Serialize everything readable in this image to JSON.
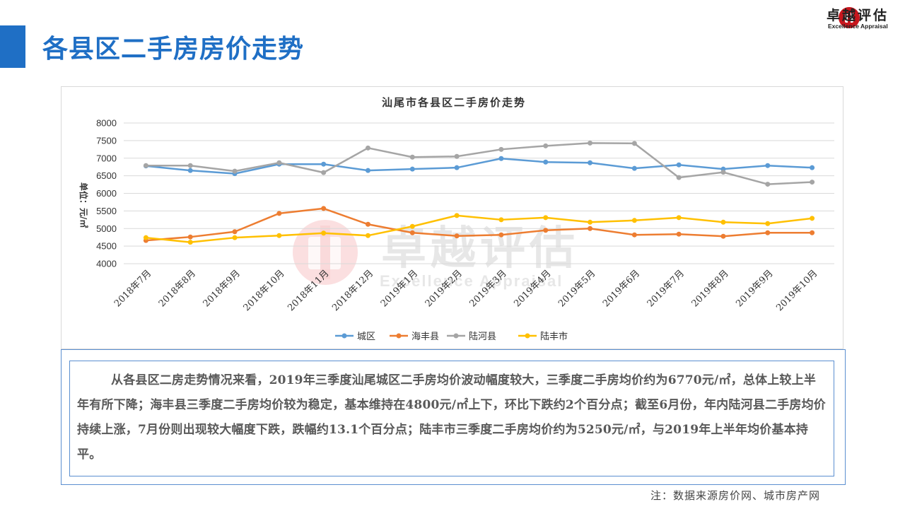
{
  "header": {
    "title": "各县区二手房房价走势"
  },
  "logo": {
    "name": "卓越评估",
    "sub": "Excellence Appraisal",
    "color": "#c8161d"
  },
  "watermark": {
    "name": "卓越评估",
    "sub": "Excellence Appraisal"
  },
  "chart_data": {
    "type": "line",
    "title": "汕尾市各县区二手房价走势",
    "ylabel": "单位：元/㎡",
    "xlabel": "",
    "ylim": [
      4000,
      8000
    ],
    "yticks": [
      4000,
      4500,
      5000,
      5500,
      6000,
      6500,
      7000,
      7500,
      8000
    ],
    "grid": "horizontal",
    "legend": "bottom",
    "categories": [
      "2018年7月",
      "2018年8月",
      "2018年9月",
      "2018年10月",
      "2018年11月",
      "2018年12月",
      "2019年1月",
      "2019年2月",
      "2019年3月",
      "2019年4月",
      "2019年5月",
      "2019年6月",
      "2019年7月",
      "2019年8月",
      "2019年9月",
      "2019年10月"
    ],
    "series": [
      {
        "name": "城区",
        "color": "#5b9bd5",
        "values": [
          6780,
          6650,
          6560,
          6830,
          6830,
          6650,
          6690,
          6730,
          6990,
          6890,
          6870,
          6710,
          6810,
          6690,
          6790,
          6730
        ]
      },
      {
        "name": "海丰县",
        "color": "#ed7d31",
        "values": [
          4660,
          4760,
          4910,
          5430,
          5570,
          5120,
          4880,
          4790,
          4820,
          4950,
          5000,
          4820,
          4840,
          4780,
          4880,
          4880
        ]
      },
      {
        "name": "陆河县",
        "color": "#a5a5a5",
        "values": [
          6790,
          6790,
          6630,
          6870,
          6590,
          7290,
          7030,
          7050,
          7250,
          7350,
          7430,
          7420,
          6450,
          6600,
          6260,
          6320
        ]
      },
      {
        "name": "陆丰市",
        "color": "#ffc000",
        "values": [
          4740,
          4610,
          4740,
          4800,
          4870,
          4800,
          5060,
          5370,
          5250,
          5310,
          5180,
          5230,
          5310,
          5180,
          5140,
          5290
        ]
      }
    ]
  },
  "analysis": {
    "text": "从各县区二房走势情况来看，2019年三季度汕尾城区二手房均价波动幅度较大，三季度二手房均价约为6770元/㎡，总体上较上半年有所下降；海丰县三季度二手房均价较为稳定，基本维持在4800元/㎡上下，环比下跌约2个百分点；截至6月份，年内陆河县二手房均价持续上涨，7月份则出现较大幅度下跌，跌幅约13.1个百分点；陆丰市三季度二手房均价约为5250元/㎡，与2019年上半年均价基本持平。"
  },
  "footnote": "注：数据来源房价网、城市房产网"
}
